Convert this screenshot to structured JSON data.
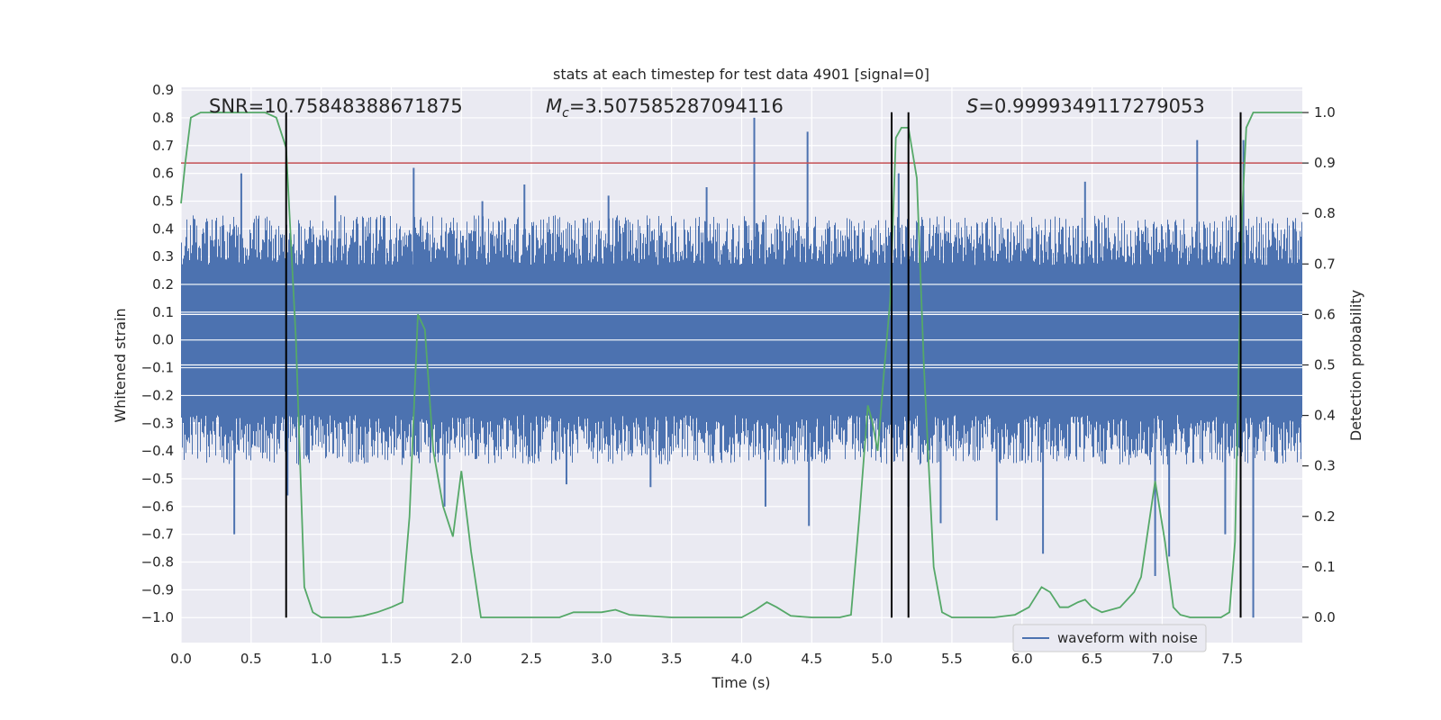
{
  "chart_data": {
    "type": "line",
    "title": "stats at each timestep for test data 4901 [signal=0]",
    "xlabel": "Time (s)",
    "ylabel_left": "Whitened strain",
    "ylabel_right": "Detection probability",
    "xlim": [
      0.0,
      8.0
    ],
    "ylim_left": [
      -1.09,
      0.91
    ],
    "ylim_right": [
      -0.05,
      1.05
    ],
    "x_ticks": [
      "0.0",
      "0.5",
      "1.0",
      "1.5",
      "2.0",
      "2.5",
      "3.0",
      "3.5",
      "4.0",
      "4.5",
      "5.0",
      "5.5",
      "6.0",
      "6.5",
      "7.0",
      "7.5"
    ],
    "y_left_ticks": [
      "0.9",
      "0.8",
      "0.7",
      "0.6",
      "0.5",
      "0.4",
      "0.3",
      "0.2",
      "0.1",
      "0.0",
      "−0.1",
      "−0.2",
      "−0.3",
      "−0.4",
      "−0.5",
      "−0.6",
      "−0.7",
      "−0.8",
      "−0.9",
      "−1.0"
    ],
    "y_right_ticks": [
      "1.0",
      "0.9",
      "0.8",
      "0.7",
      "0.6",
      "0.5",
      "0.4",
      "0.3",
      "0.2",
      "0.1",
      "0.0"
    ],
    "annotations": {
      "snr": "SNR=10.75848388671875",
      "mc_symbol": "M",
      "mc_sub": "c",
      "mc_value": "=3.507585287094116",
      "s_symbol": "S",
      "s_value": "=0.9999349117279053"
    },
    "threshold": {
      "value": 0.9,
      "axis": "right",
      "color": "#c44e52"
    },
    "vertical_lines": [
      0.75,
      5.07,
      5.19,
      7.56
    ],
    "vertical_line_range": [
      -1.0,
      0.82
    ],
    "legend": {
      "label": "waveform with noise",
      "location": "lower right"
    },
    "series": [
      {
        "name": "waveform with noise",
        "axis": "left",
        "color": "#4c72b0",
        "kind": "noise",
        "core_range": [
          -0.27,
          0.27
        ],
        "typical_peak": 0.45,
        "spikes": [
          [
            0.38,
            -0.7
          ],
          [
            0.43,
            0.6
          ],
          [
            0.76,
            -0.56
          ],
          [
            1.1,
            0.52
          ],
          [
            1.66,
            0.62
          ],
          [
            1.88,
            -0.6
          ],
          [
            2.15,
            0.5
          ],
          [
            2.45,
            0.56
          ],
          [
            2.75,
            -0.52
          ],
          [
            3.05,
            0.52
          ],
          [
            3.35,
            -0.53
          ],
          [
            3.75,
            0.55
          ],
          [
            4.09,
            0.8
          ],
          [
            4.17,
            -0.6
          ],
          [
            4.47,
            0.75
          ],
          [
            4.48,
            -0.67
          ],
          [
            5.12,
            0.6
          ],
          [
            5.19,
            -0.6
          ],
          [
            5.42,
            -0.66
          ],
          [
            5.82,
            -0.65
          ],
          [
            6.15,
            -0.77
          ],
          [
            6.45,
            0.57
          ],
          [
            6.95,
            -0.85
          ],
          [
            7.05,
            -0.78
          ],
          [
            7.25,
            0.72
          ],
          [
            7.45,
            -0.7
          ],
          [
            7.58,
            0.72
          ],
          [
            7.65,
            -1.0
          ],
          [
            7.95,
            0.4
          ]
        ]
      },
      {
        "name": "detection probability",
        "axis": "right",
        "color": "#55a868",
        "x": [
          0.0,
          0.03,
          0.07,
          0.14,
          0.5,
          0.6,
          0.68,
          0.75,
          0.82,
          0.88,
          0.94,
          1.0,
          1.1,
          1.2,
          1.3,
          1.4,
          1.5,
          1.58,
          1.63,
          1.69,
          1.74,
          1.8,
          1.87,
          1.94,
          2.0,
          2.07,
          2.14,
          2.2,
          2.5,
          2.7,
          2.8,
          2.9,
          3.0,
          3.1,
          3.2,
          3.5,
          3.8,
          4.0,
          4.1,
          4.18,
          4.25,
          4.35,
          4.5,
          4.7,
          4.78,
          4.84,
          4.9,
          4.93,
          4.97,
          5.02,
          5.06,
          5.1,
          5.14,
          5.19,
          5.25,
          5.3,
          5.37,
          5.43,
          5.5,
          5.6,
          5.8,
          5.95,
          6.05,
          6.14,
          6.2,
          6.27,
          6.33,
          6.4,
          6.45,
          6.5,
          6.57,
          6.7,
          6.8,
          6.85,
          6.95,
          7.02,
          7.08,
          7.13,
          7.2,
          7.3,
          7.42,
          7.48,
          7.52,
          7.57,
          7.6,
          7.65,
          7.75,
          8.0
        ],
        "y": [
          0.82,
          0.9,
          0.99,
          1.0,
          1.0,
          1.0,
          0.99,
          0.93,
          0.55,
          0.06,
          0.01,
          0.0,
          0.0,
          0.0,
          0.003,
          0.01,
          0.02,
          0.03,
          0.2,
          0.6,
          0.57,
          0.33,
          0.22,
          0.16,
          0.29,
          0.13,
          0.0,
          0.0,
          0.0,
          0.0,
          0.01,
          0.01,
          0.01,
          0.015,
          0.005,
          0.0,
          0.0,
          0.0,
          0.015,
          0.03,
          0.02,
          0.003,
          0.0,
          0.0,
          0.005,
          0.2,
          0.42,
          0.39,
          0.33,
          0.5,
          0.63,
          0.95,
          0.97,
          0.97,
          0.87,
          0.5,
          0.1,
          0.01,
          0.0,
          0.0,
          0.0,
          0.005,
          0.02,
          0.06,
          0.05,
          0.02,
          0.02,
          0.03,
          0.035,
          0.02,
          0.01,
          0.02,
          0.05,
          0.08,
          0.27,
          0.15,
          0.02,
          0.005,
          0.0,
          0.0,
          0.0,
          0.01,
          0.15,
          0.8,
          0.97,
          1.0,
          1.0,
          1.0
        ]
      }
    ]
  }
}
